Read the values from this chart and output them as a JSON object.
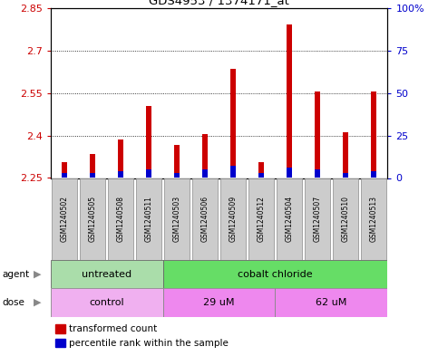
{
  "title": "GDS4953 / 1374171_at",
  "samples": [
    "GSM1240502",
    "GSM1240505",
    "GSM1240508",
    "GSM1240511",
    "GSM1240503",
    "GSM1240506",
    "GSM1240509",
    "GSM1240512",
    "GSM1240504",
    "GSM1240507",
    "GSM1240510",
    "GSM1240513"
  ],
  "transformed_counts": [
    2.305,
    2.335,
    2.385,
    2.505,
    2.365,
    2.405,
    2.635,
    2.305,
    2.79,
    2.555,
    2.41,
    2.555
  ],
  "percentile_ranks": [
    3,
    3,
    4,
    5,
    3,
    5,
    7,
    3,
    6,
    5,
    3,
    4
  ],
  "ymin": 2.25,
  "ymax": 2.85,
  "y_left_ticks": [
    2.25,
    2.4,
    2.55,
    2.7,
    2.85
  ],
  "y_right_ticks": [
    0,
    25,
    50,
    75,
    100
  ],
  "y_right_labels": [
    "0",
    "25",
    "50",
    "75",
    "100%"
  ],
  "bar_color": "#cc0000",
  "percentile_color": "#0000cc",
  "agent_groups": [
    {
      "label": "untreated",
      "start": 0,
      "end": 4,
      "color": "#aaddaa"
    },
    {
      "label": "cobalt chloride",
      "start": 4,
      "end": 12,
      "color": "#66dd66"
    }
  ],
  "dose_groups": [
    {
      "label": "control",
      "start": 0,
      "end": 4,
      "color": "#f0b0f0"
    },
    {
      "label": "29 uM",
      "start": 4,
      "end": 8,
      "color": "#ee88ee"
    },
    {
      "label": "62 uM",
      "start": 8,
      "end": 12,
      "color": "#ee88ee"
    }
  ],
  "legend_red_label": "transformed count",
  "legend_blue_label": "percentile rank within the sample",
  "tick_label_color_left": "#cc0000",
  "tick_label_color_right": "#0000cc",
  "grid_color": "#000000",
  "bar_width": 0.18,
  "pct_bar_width": 0.18
}
